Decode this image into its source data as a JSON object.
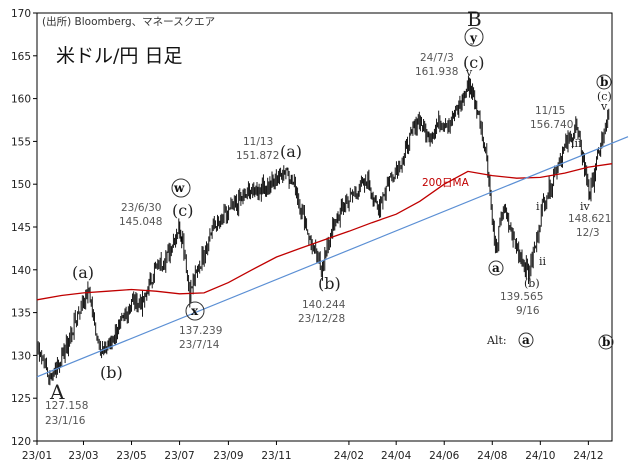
{
  "header": {
    "source": "(出所) Bloomberg、マネースクエア",
    "title": "米ドル/円 日足"
  },
  "chart_data": {
    "type": "line",
    "title": "米ドル/円 日足",
    "xlabel": "",
    "ylabel": "",
    "x_ticks": [
      "23/01",
      "23/03",
      "23/05",
      "23/07",
      "23/09",
      "23/11",
      "24/02",
      "24/04",
      "24/06",
      "24/08",
      "24/10",
      "24/12"
    ],
    "y_ticks": [
      120,
      125,
      130,
      135,
      140,
      145,
      150,
      155,
      160,
      165,
      170
    ],
    "ylim": [
      120,
      170
    ],
    "grid": false,
    "series": [
      {
        "name": "",
        "style": "ohlc",
        "color": "#000000",
        "points": [
          [
            "23/01/01",
            131.0
          ],
          [
            "23/01/10",
            129.5
          ],
          [
            "23/01/16",
            127.158
          ],
          [
            "23/01/31",
            129.5
          ],
          [
            "23/02/10",
            131.5
          ],
          [
            "23/02/20",
            134.5
          ],
          [
            "23/03/01",
            136.5
          ],
          [
            "23/03/08",
            137.5
          ],
          [
            "23/03/15",
            133.5
          ],
          [
            "23/03/24",
            130.5
          ],
          [
            "23/04/05",
            131.5
          ],
          [
            "23/04/20",
            134.0
          ],
          [
            "23/05/01",
            136.5
          ],
          [
            "23/05/15",
            136.0
          ],
          [
            "23/05/30",
            140.0
          ],
          [
            "23/06/15",
            141.5
          ],
          [
            "23/06/30",
            145.048
          ],
          [
            "23/07/05",
            143.5
          ],
          [
            "23/07/14",
            137.239
          ],
          [
            "23/07/28",
            141.0
          ],
          [
            "23/08/10",
            144.5
          ],
          [
            "23/08/25",
            146.0
          ],
          [
            "23/09/10",
            147.5
          ],
          [
            "23/09/25",
            149.0
          ],
          [
            "23/10/10",
            149.5
          ],
          [
            "23/10/25",
            150.0
          ],
          [
            "23/11/13",
            151.872
          ],
          [
            "23/11/25",
            149.5
          ],
          [
            "23/12/05",
            146.5
          ],
          [
            "23/12/15",
            143.0
          ],
          [
            "23/12/28",
            140.244
          ],
          [
            "24/01/10",
            144.5
          ],
          [
            "24/01/25",
            147.5
          ],
          [
            "24/02/10",
            149.0
          ],
          [
            "24/02/25",
            150.5
          ],
          [
            "24/03/08",
            147.0
          ],
          [
            "24/03/25",
            151.0
          ],
          [
            "24/04/10",
            153.0
          ],
          [
            "24/04/29",
            158.0
          ],
          [
            "24/05/10",
            155.5
          ],
          [
            "24/05/25",
            157.0
          ],
          [
            "24/06/10",
            157.5
          ],
          [
            "24/06/25",
            160.0
          ],
          [
            "24/07/03",
            161.938
          ],
          [
            "24/07/15",
            158.0
          ],
          [
            "24/07/25",
            153.0
          ],
          [
            "24/08/05",
            142.0
          ],
          [
            "24/08/15",
            147.5
          ],
          [
            "24/08/26",
            144.0
          ],
          [
            "24/09/05",
            142.0
          ],
          [
            "24/09/16",
            139.565
          ],
          [
            "24/09/25",
            143.0
          ],
          [
            "24/10/05",
            148.0
          ],
          [
            "24/10/15",
            150.0
          ],
          [
            "24/10/25",
            153.0
          ],
          [
            "24/11/15",
            156.74
          ],
          [
            "24/11/22",
            154.0
          ],
          [
            "24/12/03",
            148.621
          ],
          [
            "24/12/10",
            152.0
          ],
          [
            "24/12/18",
            155.0
          ],
          [
            "24/12/27",
            158.0
          ]
        ]
      },
      {
        "name": "200日MA",
        "style": "line",
        "color": "#c00000",
        "points": [
          [
            "23/01/01",
            136.5
          ],
          [
            "23/02/01",
            137.0
          ],
          [
            "23/03/01",
            137.3
          ],
          [
            "23/04/01",
            137.5
          ],
          [
            "23/05/01",
            137.7
          ],
          [
            "23/06/01",
            137.5
          ],
          [
            "23/07/01",
            137.2
          ],
          [
            "23/08/01",
            137.3
          ],
          [
            "23/09/01",
            138.5
          ],
          [
            "23/10/01",
            140.0
          ],
          [
            "23/11/01",
            141.5
          ],
          [
            "23/12/01",
            142.5
          ],
          [
            "24/01/01",
            143.5
          ],
          [
            "24/02/01",
            144.5
          ],
          [
            "24/03/01",
            145.5
          ],
          [
            "24/04/01",
            146.5
          ],
          [
            "24/05/01",
            148.0
          ],
          [
            "24/06/01",
            150.0
          ],
          [
            "24/07/01",
            151.5
          ],
          [
            "24/08/01",
            151.0
          ],
          [
            "24/09/01",
            150.7
          ],
          [
            "24/10/01",
            150.8
          ],
          [
            "24/11/01",
            151.3
          ],
          [
            "24/12/01",
            152.0
          ],
          [
            "24/12/31",
            152.4
          ]
        ]
      }
    ],
    "trendline": {
      "name": "",
      "color": "#5b8fd4",
      "from": [
        "23/01/01",
        127.5
      ],
      "to": [
        "24/12/31",
        154.5
      ]
    },
    "labels": {
      "ma_label": "200日MA",
      "wave_A": "A",
      "wave_B": "B",
      "wave_y": "y",
      "wave_c_top": "(c)",
      "wave_a1": "(a)",
      "wave_b1": "(b)",
      "wave_w": "w",
      "wave_c1": "(c)",
      "wave_x": "x",
      "wave_a2": "(a)",
      "wave_b2": "(b)",
      "wave_a3": "a",
      "wave_b_small": "(b)",
      "wave_i": "i",
      "wave_ii": "ii",
      "wave_iii": "iii",
      "wave_iv": "iv",
      "wave_b_right": "b",
      "wave_c_right": "(c)",
      "alt_label": "Alt:",
      "alt_a": "a",
      "alt_b": "b",
      "marker_top": "v",
      "marker_right": "v"
    },
    "annotations": [
      {
        "date": "23/01/16",
        "value": "127.158",
        "date_text": "23/1/16"
      },
      {
        "date": "23/06/30",
        "value": "145.048",
        "date_text": "23/6/30"
      },
      {
        "date": "23/07/14",
        "value": "137.239",
        "date_text": "23/7/14"
      },
      {
        "date": "23/11/13",
        "value": "151.872",
        "date_text": "11/13"
      },
      {
        "date": "23/12/28",
        "value": "140.244",
        "date_text": "23/12/28"
      },
      {
        "date": "24/07/03",
        "value": "161.938",
        "date_text": "24/7/3"
      },
      {
        "date": "24/09/16",
        "value": "139.565",
        "date_text": "9/16"
      },
      {
        "date": "24/11/15",
        "value": "156.740",
        "date_text": "11/15"
      },
      {
        "date": "24/12/03",
        "value": "148.621",
        "date_text": "12/3"
      }
    ]
  }
}
